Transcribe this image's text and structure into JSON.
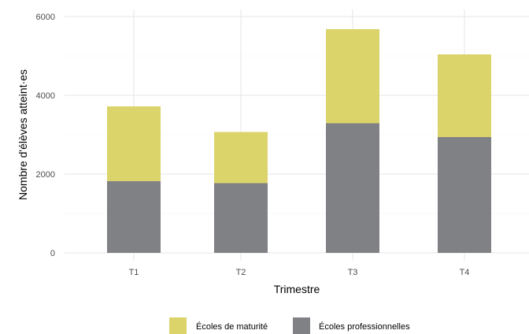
{
  "chart_data": {
    "type": "bar",
    "stacked": true,
    "categories": [
      "T1",
      "T2",
      "T3",
      "T4"
    ],
    "series": [
      {
        "name": "Écoles professionnelles",
        "values": [
          1820,
          1770,
          3290,
          2940
        ],
        "color": "#808184"
      },
      {
        "name": "Écoles de maturité",
        "values": [
          1900,
          1300,
          2390,
          2100
        ],
        "color": "#dbd46b"
      }
    ],
    "xlabel": "Trimestre",
    "ylabel": "Nombre d'élèves atteint·es",
    "ylim": [
      0,
      6000
    ],
    "yticks": [
      0,
      2000,
      4000,
      6000
    ],
    "yticks_labels": [
      "0",
      "2000",
      "4000",
      "6000"
    ],
    "grid": true,
    "legend": {
      "placement": "bottom",
      "order": [
        "Écoles de maturité",
        "Écoles professionnelles"
      ]
    }
  }
}
